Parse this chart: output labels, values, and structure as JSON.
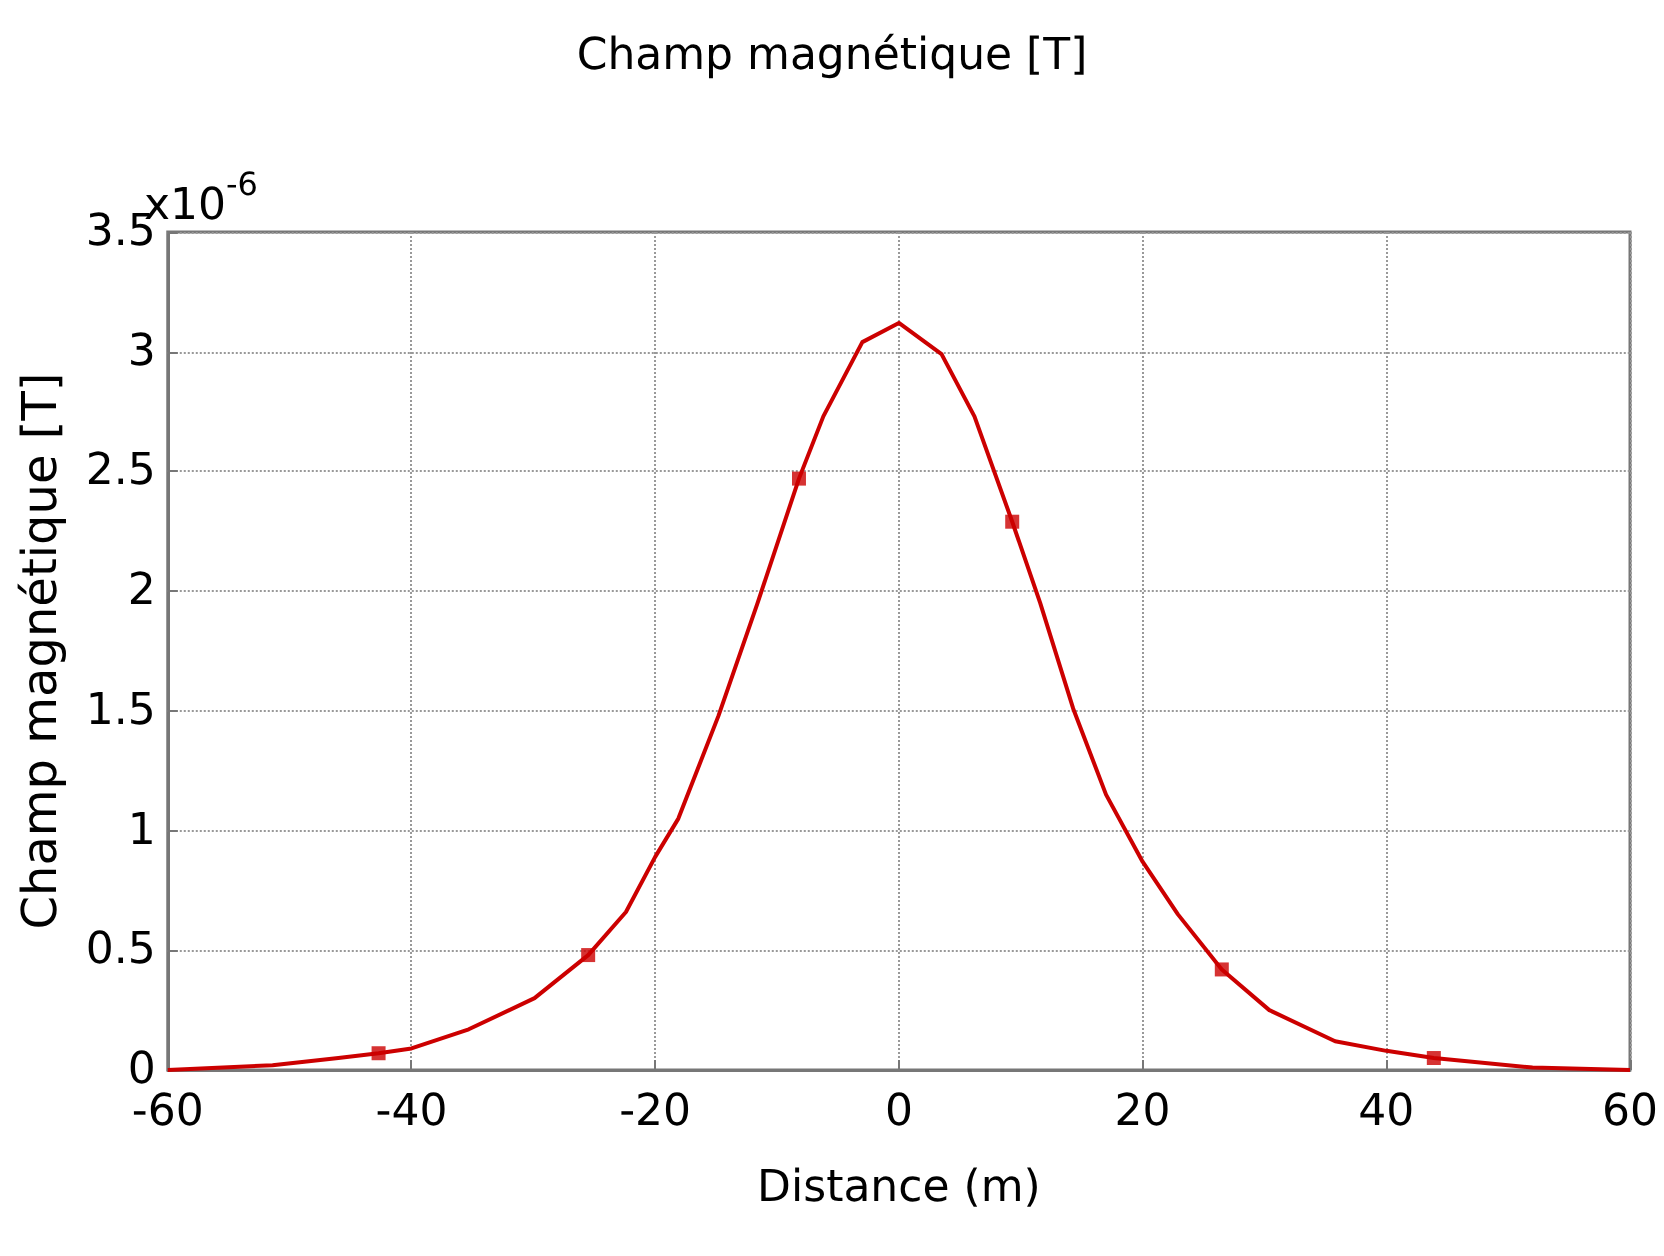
{
  "chart_data": {
    "type": "line",
    "title": "Champ magnétique [T]",
    "xlabel": "Distance (m)",
    "ylabel": "Champ magnétique [T]",
    "annotations": [
      "x10$^{-6}$"
    ],
    "series": [
      {
        "color": "#cc0000",
        "marker": "none",
        "line_style": "solid",
        "x": [
          -60,
          -51.4,
          -46,
          -42.7,
          -40,
          -35.3,
          -29.9,
          -25.5,
          -22.4,
          -20,
          -18.1,
          -14.8,
          -11.6,
          -8.2,
          -6.2,
          -3,
          0,
          3.5,
          6.2,
          9.3,
          11.6,
          14.3,
          17,
          20,
          22.9,
          26.5,
          30.4,
          35.8,
          40,
          43.9,
          52,
          60
        ],
        "values": [
          0,
          0.02,
          0.05,
          0.07,
          0.09,
          0.17,
          0.3,
          0.48,
          0.66,
          0.89,
          1.05,
          1.48,
          1.95,
          2.47,
          2.73,
          3.04,
          3.12,
          2.99,
          2.73,
          2.29,
          1.95,
          1.51,
          1.15,
          0.87,
          0.65,
          0.42,
          0.25,
          0.12,
          0.08,
          0.05,
          0.01,
          0
        ]
      },
      {
        "type": "scatter",
        "color": "#cc0000",
        "marker": "square",
        "x": [
          -42.7,
          -25.5,
          -8.2,
          9.3,
          26.5,
          43.9
        ],
        "values": [
          0.07,
          0.48,
          2.47,
          2.29,
          0.42,
          0.05
        ]
      }
    ],
    "xlim": [
      -60,
      60
    ],
    "xticks": [
      -60,
      -40,
      -20,
      0,
      20,
      40,
      60
    ],
    "ylim": [
      0,
      3.5
    ],
    "yticks": [
      0,
      0.5,
      1,
      1.5,
      2,
      2.5,
      3,
      3.5
    ],
    "grid": true
  }
}
